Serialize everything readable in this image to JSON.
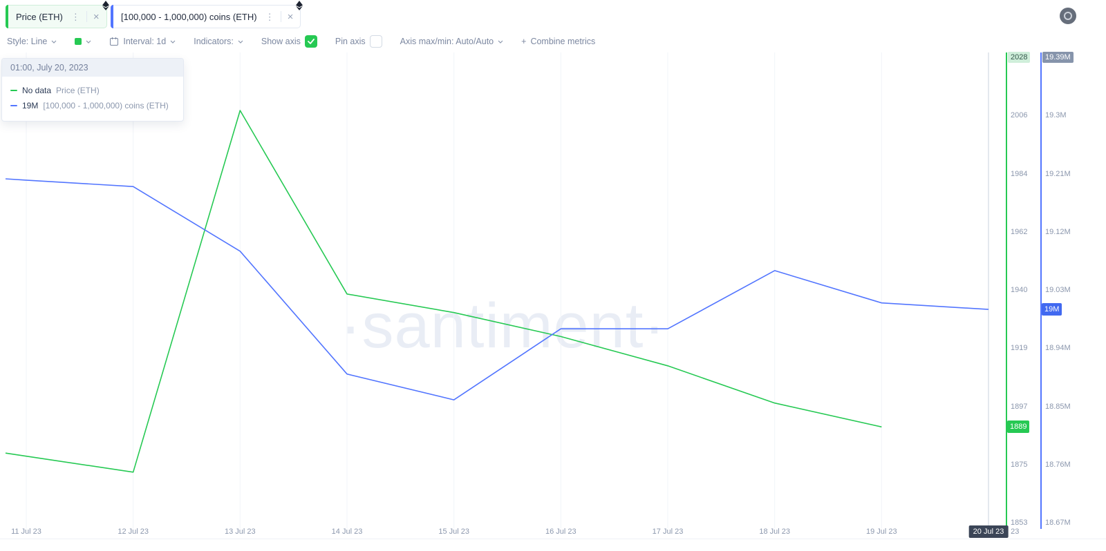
{
  "icons": {
    "kebab": "⋮",
    "close": "×",
    "plus": "+"
  },
  "header": {
    "metric_chips": [
      {
        "label": "Price (ETH)",
        "accent_color": "#26c953",
        "asset_icon": "ethereum-icon"
      },
      {
        "label": "[100,000 - 1,000,000) coins (ETH)",
        "accent_color": "#5275ff",
        "asset_icon": "ethereum-icon"
      }
    ]
  },
  "toolbar": {
    "style_label": "Style: Line",
    "swatch_color": "#26c953",
    "interval_label": "Interval: 1d",
    "indicators_label": "Indicators:",
    "show_axis_label": "Show axis",
    "show_axis_checked": true,
    "pin_axis_label": "Pin axis",
    "pin_axis_checked": false,
    "axis_maxmin_label": "Axis max/min: Auto/Auto",
    "combine_metrics_label": "Combine metrics"
  },
  "tooltip": {
    "datetime": "01:00, July 20, 2023",
    "rows": [
      {
        "value": "No data",
        "label": "Price (ETH)",
        "color": "#26c953"
      },
      {
        "value": "19M",
        "label": "[100,000  - 1,000,000) coins (ETH)",
        "color": "#5275ff"
      }
    ]
  },
  "watermark": "·santiment·",
  "chart_data": {
    "type": "line",
    "x": [
      "11 Jul 23",
      "12 Jul 23",
      "13 Jul 23",
      "14 Jul 23",
      "15 Jul 23",
      "16 Jul 23",
      "17 Jul 23",
      "18 Jul 23",
      "19 Jul 23",
      "20 Jul 23"
    ],
    "series": [
      {
        "name": "Price (ETH)",
        "axis": "price",
        "color": "#26c953",
        "values": [
          1878,
          1872,
          2008,
          1939,
          1932,
          1923,
          1912,
          1898,
          1889,
          null
        ]
      },
      {
        "name": "[100,000 - 1,000,000) coins (ETH)",
        "axis": "coins",
        "color": "#5275ff",
        "unit": "M",
        "values": [
          19.2,
          19.19,
          19.09,
          18.9,
          18.86,
          18.97,
          18.97,
          19.06,
          19.01,
          19.0
        ]
      }
    ],
    "axes": {
      "price": {
        "side": "right",
        "color": "#26c953",
        "max": 2028,
        "min": 1853,
        "ticks": [
          "2028",
          "2006",
          "1984",
          "1962",
          "1940",
          "1919",
          "1897",
          "1875",
          "1853"
        ],
        "value_badge": "1889",
        "value_badge_value": 1889
      },
      "coins": {
        "side": "right-outer",
        "color": "#5275ff",
        "max": 19.39,
        "min": 18.67,
        "ticks": [
          "19.39M",
          "19.3M",
          "19.21M",
          "19.12M",
          "19.03M",
          "18.94M",
          "18.85M",
          "18.76M",
          "18.67M"
        ],
        "value_badge": "19M",
        "value_badge_value": 19.0
      }
    },
    "crosshair_index": 9,
    "crosshair_date_badge": "20 Jul 23",
    "grid": "vertical-light",
    "legend_position": "top-left tooltip"
  }
}
